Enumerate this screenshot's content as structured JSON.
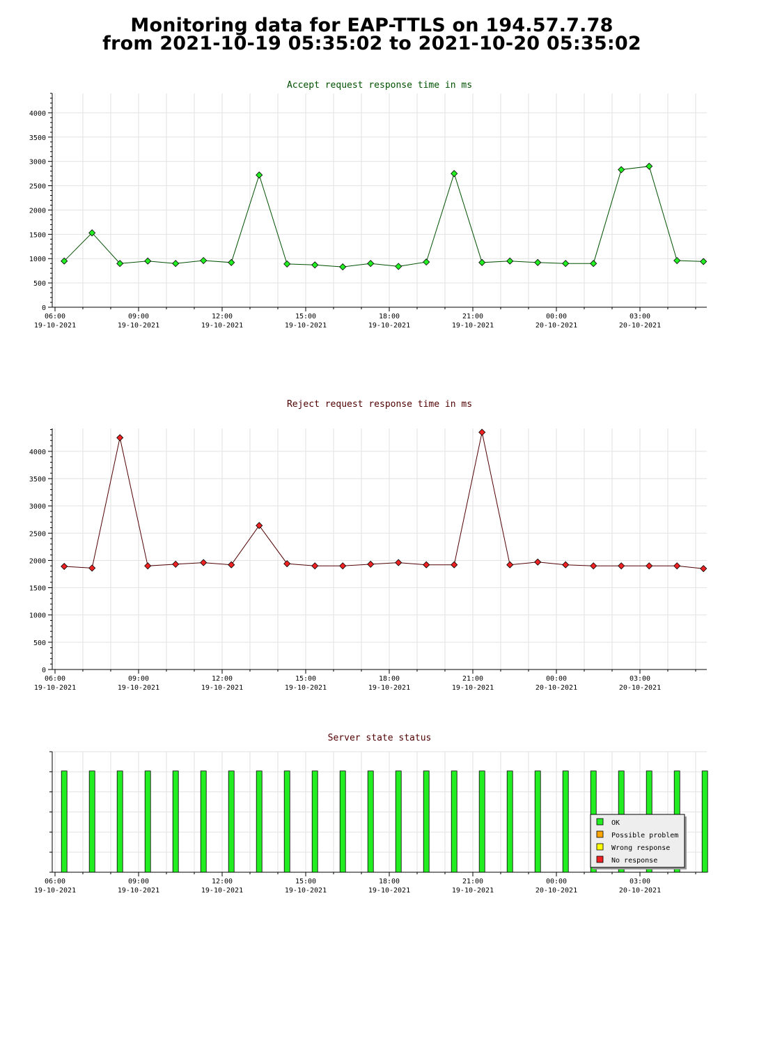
{
  "page": {
    "title_line1": "Monitoring data for EAP-TTLS on 194.57.7.78",
    "title_line2": "from 2021-10-19 05:35:02 to 2021-10-20 05:35:02"
  },
  "chart_data": [
    {
      "type": "line",
      "title": "Accept request response time in ms",
      "title_color": "#005000",
      "line_color": "#005000",
      "marker_color": "#22ee22",
      "grid": true,
      "ylim": [
        0,
        4400
      ],
      "yticks": [
        0,
        500,
        1000,
        1500,
        2000,
        2500,
        3000,
        3500,
        4000
      ],
      "xlim": [
        5.9,
        29.4
      ],
      "xticks": [
        {
          "x": 6,
          "time": "06:00",
          "date": "19-10-2021"
        },
        {
          "x": 9,
          "time": "09:00",
          "date": "19-10-2021"
        },
        {
          "x": 12,
          "time": "12:00",
          "date": "19-10-2021"
        },
        {
          "x": 15,
          "time": "15:00",
          "date": "19-10-2021"
        },
        {
          "x": 18,
          "time": "18:00",
          "date": "19-10-2021"
        },
        {
          "x": 21,
          "time": "21:00",
          "date": "19-10-2021"
        },
        {
          "x": 24,
          "time": "00:00",
          "date": "20-10-2021"
        },
        {
          "x": 27,
          "time": "03:00",
          "date": "20-10-2021"
        }
      ],
      "x": [
        6.33,
        7.33,
        8.33,
        9.33,
        10.33,
        11.33,
        12.33,
        13.33,
        14.33,
        15.33,
        16.33,
        17.33,
        18.33,
        19.33,
        20.33,
        21.33,
        22.33,
        23.33,
        24.33,
        25.33,
        26.33,
        27.33,
        28.33,
        29.28
      ],
      "values": [
        950,
        1530,
        900,
        950,
        900,
        960,
        920,
        2720,
        890,
        870,
        830,
        900,
        840,
        930,
        2750,
        920,
        950,
        920,
        900,
        900,
        2830,
        2900,
        960,
        940
      ]
    },
    {
      "type": "line",
      "title": "Reject request response time in ms",
      "title_color": "#500000",
      "line_color": "#500000",
      "marker_color": "#ee2222",
      "grid": true,
      "ylim": [
        0,
        4420
      ],
      "yticks": [
        0,
        500,
        1000,
        1500,
        2000,
        2500,
        3000,
        3500,
        4000
      ],
      "xlim": [
        5.9,
        29.4
      ],
      "xticks": [
        {
          "x": 6,
          "time": "06:00",
          "date": "19-10-2021"
        },
        {
          "x": 9,
          "time": "09:00",
          "date": "19-10-2021"
        },
        {
          "x": 12,
          "time": "12:00",
          "date": "19-10-2021"
        },
        {
          "x": 15,
          "time": "15:00",
          "date": "19-10-2021"
        },
        {
          "x": 18,
          "time": "18:00",
          "date": "19-10-2021"
        },
        {
          "x": 21,
          "time": "21:00",
          "date": "19-10-2021"
        },
        {
          "x": 24,
          "time": "00:00",
          "date": "20-10-2021"
        },
        {
          "x": 27,
          "time": "03:00",
          "date": "20-10-2021"
        }
      ],
      "x": [
        6.33,
        7.33,
        8.33,
        9.33,
        10.33,
        11.33,
        12.33,
        13.33,
        14.33,
        15.33,
        16.33,
        17.33,
        18.33,
        19.33,
        20.33,
        21.33,
        22.33,
        23.33,
        24.33,
        25.33,
        26.33,
        27.33,
        28.33,
        29.28
      ],
      "values": [
        1890,
        1860,
        4250,
        1900,
        1930,
        1960,
        1920,
        2640,
        1940,
        1900,
        1900,
        1930,
        1960,
        1920,
        1920,
        4350,
        1920,
        1970,
        1920,
        1900,
        1900,
        1900,
        1900,
        1850
      ]
    },
    {
      "type": "bar",
      "title": "Server state status",
      "title_color": "#500000",
      "grid": true,
      "xlim": [
        5.9,
        29.4
      ],
      "xticks": [
        {
          "x": 6,
          "time": "06:00",
          "date": "19-10-2021"
        },
        {
          "x": 9,
          "time": "09:00",
          "date": "19-10-2021"
        },
        {
          "x": 12,
          "time": "12:00",
          "date": "19-10-2021"
        },
        {
          "x": 15,
          "time": "15:00",
          "date": "19-10-2021"
        },
        {
          "x": 18,
          "time": "18:00",
          "date": "19-10-2021"
        },
        {
          "x": 21,
          "time": "21:00",
          "date": "19-10-2021"
        },
        {
          "x": 24,
          "time": "00:00",
          "date": "20-10-2021"
        },
        {
          "x": 27,
          "time": "03:00",
          "date": "20-10-2021"
        }
      ],
      "x": [
        6.33,
        7.33,
        8.33,
        9.33,
        10.33,
        11.33,
        12.33,
        13.33,
        14.33,
        15.33,
        16.33,
        17.33,
        18.33,
        19.33,
        20.33,
        21.33,
        22.33,
        23.33,
        24.33,
        25.33,
        26.33,
        27.33,
        28.33,
        29.33
      ],
      "states": [
        "OK",
        "OK",
        "OK",
        "OK",
        "OK",
        "OK",
        "OK",
        "OK",
        "OK",
        "OK",
        "OK",
        "OK",
        "OK",
        "OK",
        "OK",
        "OK",
        "OK",
        "OK",
        "OK",
        "OK",
        "OK",
        "OK",
        "OK",
        "OK"
      ],
      "legend_position": "bottom-right",
      "legend": [
        {
          "label": "OK",
          "color": "#22ee22"
        },
        {
          "label": "Possible problem",
          "color": "#ffa500"
        },
        {
          "label": "Wrong response",
          "color": "#ffff00"
        },
        {
          "label": "No response",
          "color": "#ee2222"
        }
      ]
    }
  ]
}
